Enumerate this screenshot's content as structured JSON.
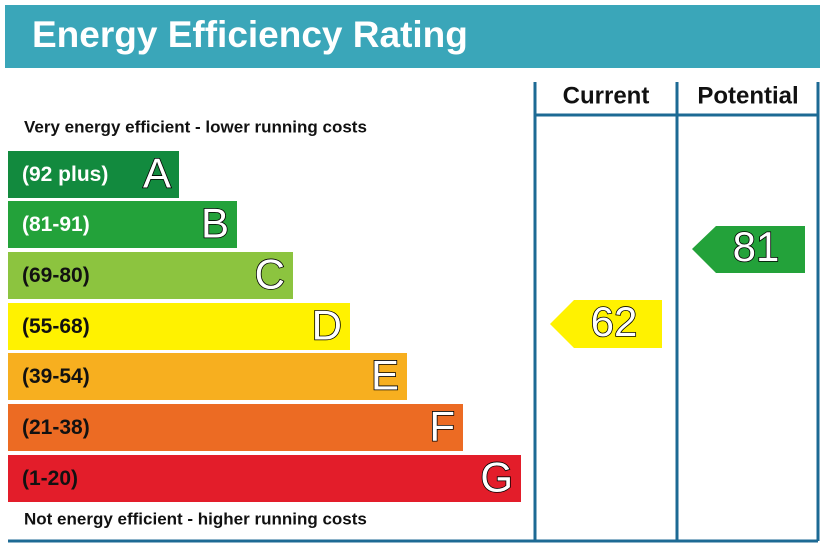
{
  "header": {
    "title": "Energy Efficiency Rating"
  },
  "top_note": "Very energy efficient - lower running costs",
  "bottom_note": "Not energy efficient - higher running costs",
  "columns": [
    "Current",
    "Potential"
  ],
  "bands": [
    {
      "range": "(92 plus)",
      "letter": "A",
      "color": "#128a3e"
    },
    {
      "range": "(81-91)",
      "letter": "B",
      "color": "#23a23a"
    },
    {
      "range": "(69-80)",
      "letter": "C",
      "color": "#8cc43f"
    },
    {
      "range": "(55-68)",
      "letter": "D",
      "color": "#fff200"
    },
    {
      "range": "(39-54)",
      "letter": "E",
      "color": "#f7af1f"
    },
    {
      "range": "(21-38)",
      "letter": "F",
      "color": "#ec6b23"
    },
    {
      "range": "(1-20)",
      "letter": "G",
      "color": "#e31d2a"
    }
  ],
  "current": {
    "value": "62",
    "color": "#fff200"
  },
  "potential": {
    "value": "81",
    "color": "#23a23a"
  }
}
